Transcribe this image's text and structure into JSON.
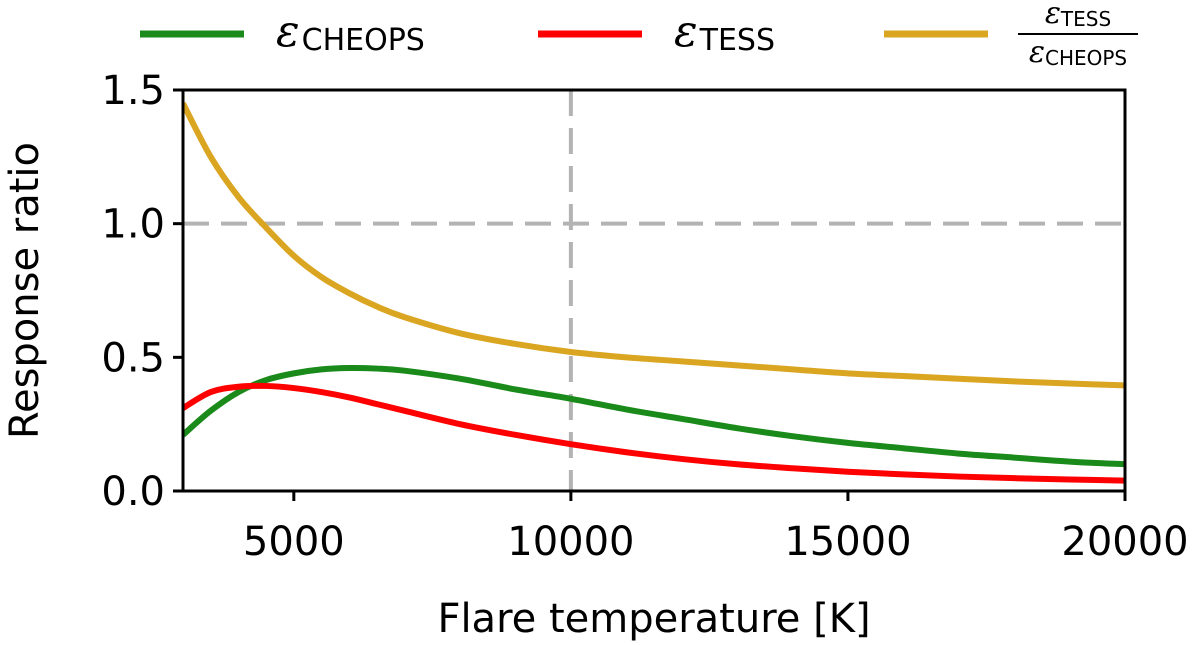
{
  "chart_data": {
    "type": "line",
    "xlabel": "Flare temperature [K]",
    "ylabel": "Response ratio",
    "xlim": [
      3000,
      20000
    ],
    "ylim": [
      0.0,
      1.5
    ],
    "xticks": [
      5000,
      10000,
      15000,
      20000
    ],
    "xtick_labels": [
      "5000",
      "10000",
      "15000",
      "20000"
    ],
    "yticks": [
      0.0,
      0.5,
      1.0,
      1.5
    ],
    "ytick_labels": [
      "0.0",
      "0.5",
      "1.0",
      "1.5"
    ],
    "grid": false,
    "legend_position": "top, outside plot",
    "reference_lines": [
      {
        "orientation": "horizontal",
        "value": 1.0,
        "style": "dashed",
        "color": "#b3b3b3"
      },
      {
        "orientation": "vertical",
        "value": 10000,
        "style": "dashed",
        "color": "#b3b3b3"
      }
    ],
    "series": [
      {
        "name": "εCHEOPS",
        "legend_symbol": "ε",
        "legend_sub": "CHEOPS",
        "color": "#1a8a1a",
        "x": [
          3000,
          3500,
          4000,
          4500,
          5000,
          5500,
          6000,
          6500,
          7000,
          8000,
          9000,
          10000,
          11000,
          12000,
          13000,
          14000,
          15000,
          16000,
          17000,
          18000,
          19000,
          20000
        ],
        "y": [
          0.21,
          0.3,
          0.37,
          0.415,
          0.44,
          0.455,
          0.46,
          0.458,
          0.45,
          0.42,
          0.38,
          0.345,
          0.305,
          0.27,
          0.235,
          0.205,
          0.18,
          0.16,
          0.14,
          0.125,
          0.11,
          0.1
        ]
      },
      {
        "name": "εTESS",
        "legend_symbol": "ε",
        "legend_sub": "TESS",
        "color": "#ff0000",
        "x": [
          3000,
          3500,
          4000,
          4500,
          5000,
          5500,
          6000,
          6500,
          7000,
          8000,
          9000,
          10000,
          11000,
          12000,
          13000,
          14000,
          15000,
          16000,
          17000,
          18000,
          19000,
          20000
        ],
        "y": [
          0.31,
          0.37,
          0.39,
          0.393,
          0.385,
          0.37,
          0.35,
          0.325,
          0.3,
          0.25,
          0.21,
          0.175,
          0.145,
          0.12,
          0.1,
          0.085,
          0.072,
          0.062,
          0.054,
          0.048,
          0.043,
          0.039
        ]
      },
      {
        "name": "εTESS/εCHEOPS",
        "legend_symbol": "ε",
        "legend_num_sub": "TESS",
        "legend_den_sub": "CHEOPS",
        "color": "#daa520",
        "x": [
          3000,
          3500,
          4000,
          4500,
          5000,
          5500,
          6000,
          6500,
          7000,
          8000,
          9000,
          10000,
          11000,
          12000,
          13000,
          14000,
          15000,
          16000,
          17000,
          18000,
          19000,
          20000
        ],
        "y": [
          1.45,
          1.25,
          1.1,
          0.985,
          0.88,
          0.8,
          0.74,
          0.69,
          0.65,
          0.59,
          0.55,
          0.52,
          0.5,
          0.485,
          0.47,
          0.455,
          0.44,
          0.43,
          0.42,
          0.41,
          0.402,
          0.395
        ]
      }
    ]
  }
}
